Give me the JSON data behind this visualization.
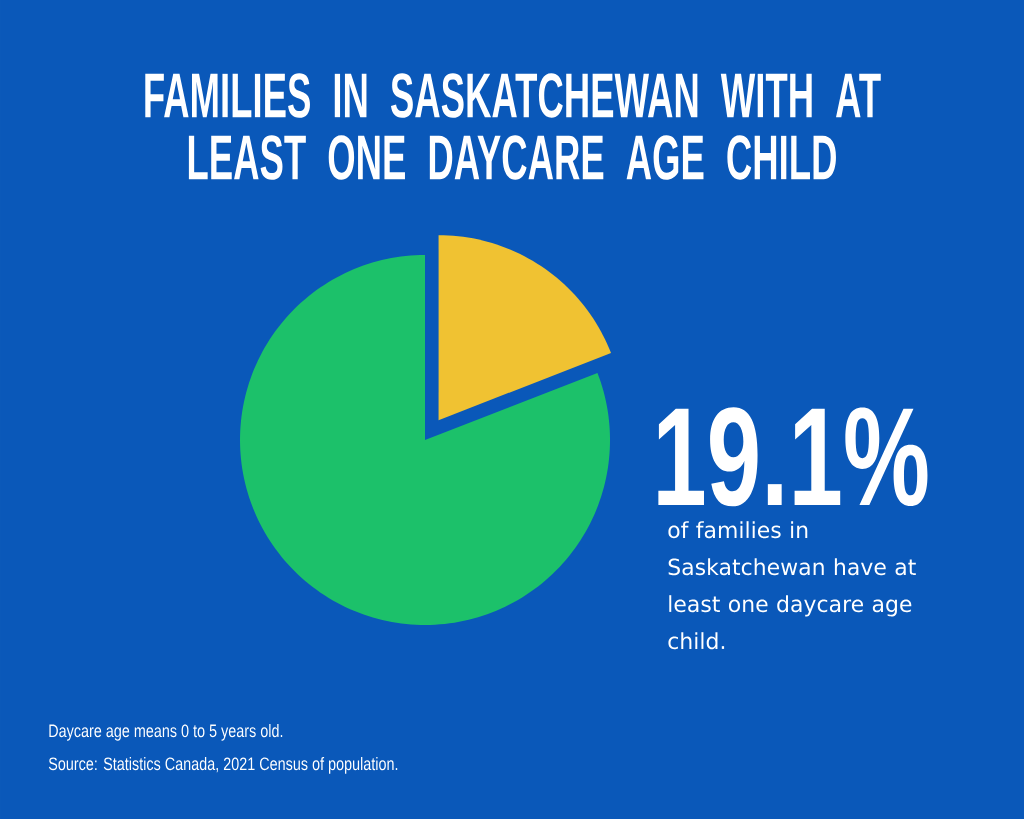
{
  "chart_data": {
    "type": "pie",
    "title": "FAMILIES IN SASKATCHEWAN WITH AT LEAST ONE DAYCARE AGE CHILD",
    "categories": [
      null,
      null
    ],
    "values": [
      19.1,
      80.9
    ],
    "colors": [
      "#f0c232",
      "#1cc16a"
    ],
    "value_labels": [
      "19.1%",
      null
    ],
    "annotations": [
      "of families in Saskatchewan have at least one daycare age child.",
      "Daycare age means 0 to 5 years old.",
      "Source: Statistics Canada, 2021 Census of population."
    ]
  }
}
